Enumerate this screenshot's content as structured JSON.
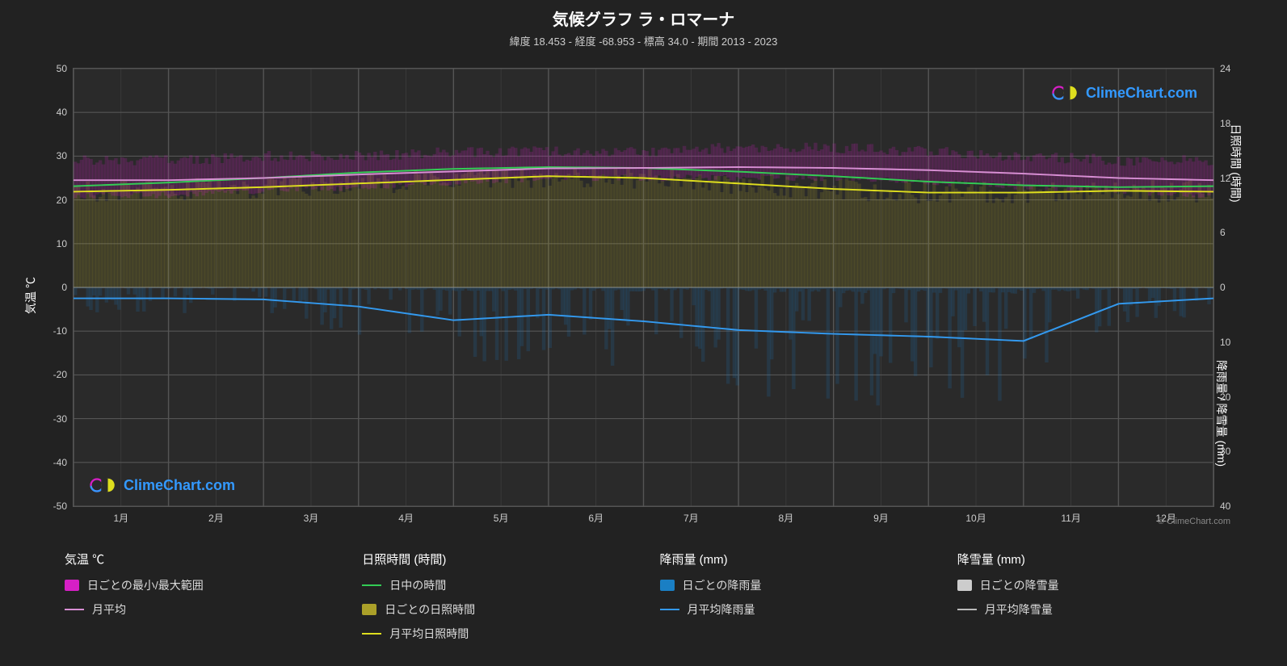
{
  "title": "気候グラフ ラ・ロマーナ",
  "subtitle": "緯度 18.453 - 経度 -68.953 - 標高 34.0 - 期間 2013 - 2023",
  "branding": {
    "name": "ClimeChart.com",
    "copyright": "© ClimeChart.com"
  },
  "background_color": "#222222",
  "plot_background": "#2a2a2a",
  "grid_color": "#555555",
  "text_color": "#e0e0e0",
  "y_left": {
    "label": "気温 ℃",
    "min": -50,
    "max": 50,
    "step": 10,
    "ticks": [
      50,
      40,
      30,
      20,
      10,
      0,
      -10,
      -20,
      -30,
      -40,
      -50
    ]
  },
  "y_right_top": {
    "label": "日照時間 (時間)",
    "ticks": [
      {
        "v": 24,
        "pos": 50
      },
      {
        "v": 18,
        "pos": 37.5
      },
      {
        "v": 12,
        "pos": 25
      },
      {
        "v": 6,
        "pos": 12.5
      },
      {
        "v": 0,
        "pos": 0
      }
    ]
  },
  "y_right_bottom": {
    "label": "降雨量 / 降雪量 (mm)",
    "ticks": [
      {
        "v": 0,
        "pos": 0
      },
      {
        "v": 10,
        "pos": -12.5
      },
      {
        "v": 20,
        "pos": -25
      },
      {
        "v": 30,
        "pos": -37.5
      },
      {
        "v": 40,
        "pos": -50
      }
    ]
  },
  "x_axis": {
    "labels": [
      "1月",
      "2月",
      "3月",
      "4月",
      "5月",
      "6月",
      "7月",
      "8月",
      "9月",
      "10月",
      "11月",
      "12月"
    ]
  },
  "legend": {
    "temperature": {
      "title": "気温 ℃",
      "items": [
        {
          "type": "swatch",
          "color": "#d61fc5",
          "label": "日ごとの最小/最大範囲"
        },
        {
          "type": "line",
          "color": "#d88fd4",
          "label": "月平均"
        }
      ]
    },
    "daylight": {
      "title": "日照時間 (時間)",
      "items": [
        {
          "type": "line",
          "color": "#33cc55",
          "label": "日中の時間"
        },
        {
          "type": "swatch",
          "color": "#aba029",
          "label": "日ごとの日照時間"
        },
        {
          "type": "line",
          "color": "#dede1e",
          "label": "月平均日照時間"
        }
      ]
    },
    "rain": {
      "title": "降雨量 (mm)",
      "items": [
        {
          "type": "swatch",
          "color": "#1a7fc4",
          "label": "日ごとの降雨量"
        },
        {
          "type": "line",
          "color": "#3399ee",
          "label": "月平均降雨量"
        }
      ]
    },
    "snow": {
      "title": "降雪量 (mm)",
      "items": [
        {
          "type": "swatch",
          "color": "#cccccc",
          "label": "日ごとの降雪量"
        },
        {
          "type": "line",
          "color": "#bbbbbb",
          "label": "月平均降雪量"
        }
      ]
    }
  },
  "series": {
    "temp_avg_monthly": [
      24.5,
      24.5,
      25.0,
      25.8,
      26.5,
      27.2,
      27.3,
      27.5,
      27.3,
      26.8,
      26.0,
      25.0
    ],
    "temp_max_daily": [
      29,
      29,
      30,
      30,
      31,
      31,
      31,
      32,
      32,
      31,
      30,
      29
    ],
    "temp_min_daily": [
      21,
      21,
      22,
      23,
      24,
      25,
      25,
      25,
      25,
      24,
      23,
      22
    ],
    "daylight_hours": [
      11.1,
      11.5,
      12.0,
      12.6,
      13.0,
      13.2,
      13.1,
      12.7,
      12.2,
      11.6,
      11.2,
      11.0
    ],
    "sunshine_avg": [
      10.5,
      10.7,
      11.0,
      11.4,
      11.8,
      12.2,
      12.0,
      11.4,
      10.8,
      10.4,
      10.4,
      10.6
    ],
    "rain_avg_monthly": [
      2.0,
      2.0,
      2.2,
      3.5,
      6.0,
      5.0,
      6.2,
      7.8,
      8.5,
      9.0,
      9.8,
      3.0
    ],
    "colors": {
      "temp_range": "#d61fc5",
      "temp_avg": "#d88fd4",
      "daylight": "#33cc55",
      "sunshine_fill": "#aba029",
      "sunshine_avg": "#dede1e",
      "rain_fill": "#1a7fc4",
      "rain_avg": "#3399ee",
      "snow_fill": "#cccccc",
      "snow_avg": "#bbbbbb"
    }
  }
}
